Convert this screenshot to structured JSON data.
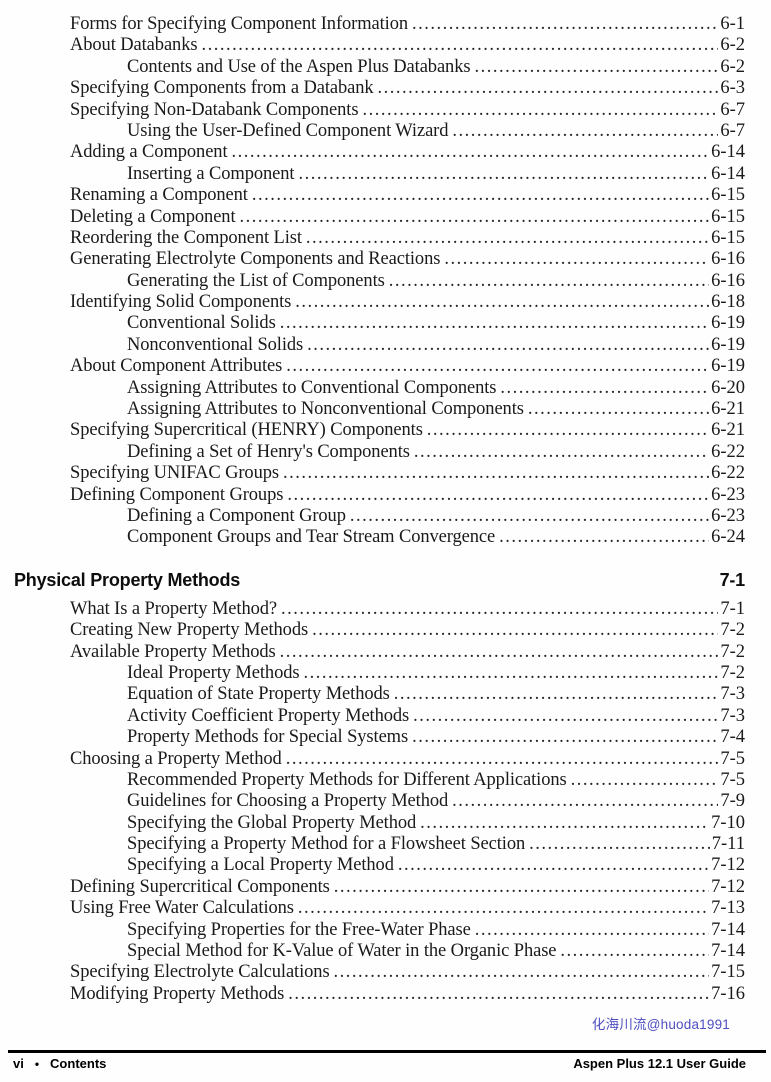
{
  "colors": {
    "text": "#1a1a1a",
    "watermark": "#4e4ec0",
    "footer_rule": "#000000"
  },
  "watermark": {
    "text": "化海川流@huoda1991"
  },
  "footer": {
    "page_number": "vi",
    "separator": "•",
    "section_label": "Contents",
    "document_title": "Aspen Plus 12.1 User Guide"
  },
  "toc": {
    "sections": [
      {
        "heading": null,
        "entries": [
          {
            "level": 1,
            "title": "Forms for Specifying Component Information",
            "page": "6-1"
          },
          {
            "level": 1,
            "title": "About Databanks",
            "page": "6-2"
          },
          {
            "level": 2,
            "title": "Contents and Use of the Aspen Plus Databanks",
            "page": "6-2"
          },
          {
            "level": 1,
            "title": "Specifying Components from a Databank",
            "page": "6-3"
          },
          {
            "level": 1,
            "title": "Specifying Non-Databank Components",
            "page": "6-7"
          },
          {
            "level": 2,
            "title": "Using the User-Defined Component Wizard",
            "page": "6-7"
          },
          {
            "level": 1,
            "title": "Adding a Component",
            "page": "6-14"
          },
          {
            "level": 2,
            "title": "Inserting a Component",
            "page": "6-14"
          },
          {
            "level": 1,
            "title": "Renaming a Component",
            "page": "6-15"
          },
          {
            "level": 1,
            "title": "Deleting a Component",
            "page": "6-15"
          },
          {
            "level": 1,
            "title": "Reordering the Component List",
            "page": "6-15"
          },
          {
            "level": 1,
            "title": "Generating Electrolyte Components and Reactions",
            "page": "6-16"
          },
          {
            "level": 2,
            "title": "Generating the List of Components",
            "page": "6-16"
          },
          {
            "level": 1,
            "title": "Identifying Solid Components",
            "page": "6-18"
          },
          {
            "level": 2,
            "title": "Conventional Solids",
            "page": "6-19"
          },
          {
            "level": 2,
            "title": "Nonconventional Solids",
            "page": "6-19"
          },
          {
            "level": 1,
            "title": "About Component Attributes",
            "page": "6-19"
          },
          {
            "level": 2,
            "title": "Assigning Attributes to Conventional Components",
            "page": "6-20"
          },
          {
            "level": 2,
            "title": "Assigning Attributes to Nonconventional Components",
            "page": "6-21"
          },
          {
            "level": 1,
            "title": "Specifying Supercritical (HENRY) Components",
            "page": "6-21"
          },
          {
            "level": 2,
            "title": "Defining a Set of Henry's Components",
            "page": "6-22"
          },
          {
            "level": 1,
            "title": "Specifying UNIFAC Groups",
            "page": "6-22"
          },
          {
            "level": 1,
            "title": "Defining Component Groups",
            "page": "6-23"
          },
          {
            "level": 2,
            "title": "Defining a Component Group",
            "page": "6-23"
          },
          {
            "level": 2,
            "title": "Component Groups and Tear Stream Convergence",
            "page": "6-24"
          }
        ]
      },
      {
        "heading": {
          "title": "Physical Property Methods",
          "page": "7-1"
        },
        "entries": [
          {
            "level": 1,
            "title": "What Is a Property Method?",
            "page": "7-1"
          },
          {
            "level": 1,
            "title": "Creating New Property Methods",
            "page": "7-2"
          },
          {
            "level": 1,
            "title": "Available Property Methods",
            "page": "7-2"
          },
          {
            "level": 2,
            "title": "Ideal Property Methods",
            "page": "7-2"
          },
          {
            "level": 2,
            "title": "Equation of State Property Methods",
            "page": "7-3"
          },
          {
            "level": 2,
            "title": "Activity Coefficient Property Methods",
            "page": "7-3"
          },
          {
            "level": 2,
            "title": "Property Methods for Special Systems",
            "page": "7-4"
          },
          {
            "level": 1,
            "title": "Choosing a Property Method",
            "page": "7-5"
          },
          {
            "level": 2,
            "title": "Recommended Property Methods for Different Applications",
            "page": "7-5"
          },
          {
            "level": 2,
            "title": "Guidelines for Choosing a Property Method",
            "page": "7-9"
          },
          {
            "level": 2,
            "title": "Specifying the Global Property Method",
            "page": "7-10"
          },
          {
            "level": 2,
            "title": "Specifying a Property Method for a Flowsheet Section",
            "page": "7-11"
          },
          {
            "level": 2,
            "title": "Specifying a Local Property Method",
            "page": "7-12"
          },
          {
            "level": 1,
            "title": "Defining Supercritical Components",
            "page": "7-12"
          },
          {
            "level": 1,
            "title": "Using Free Water Calculations",
            "page": "7-13"
          },
          {
            "level": 2,
            "title": "Specifying Properties for the Free-Water Phase",
            "page": "7-14"
          },
          {
            "level": 2,
            "title": "Special Method for K-Value of Water in the Organic Phase",
            "page": "7-14"
          },
          {
            "level": 1,
            "title": "Specifying Electrolyte Calculations",
            "page": "7-15"
          },
          {
            "level": 1,
            "title": "Modifying Property Methods",
            "page": "7-16"
          }
        ]
      }
    ]
  }
}
